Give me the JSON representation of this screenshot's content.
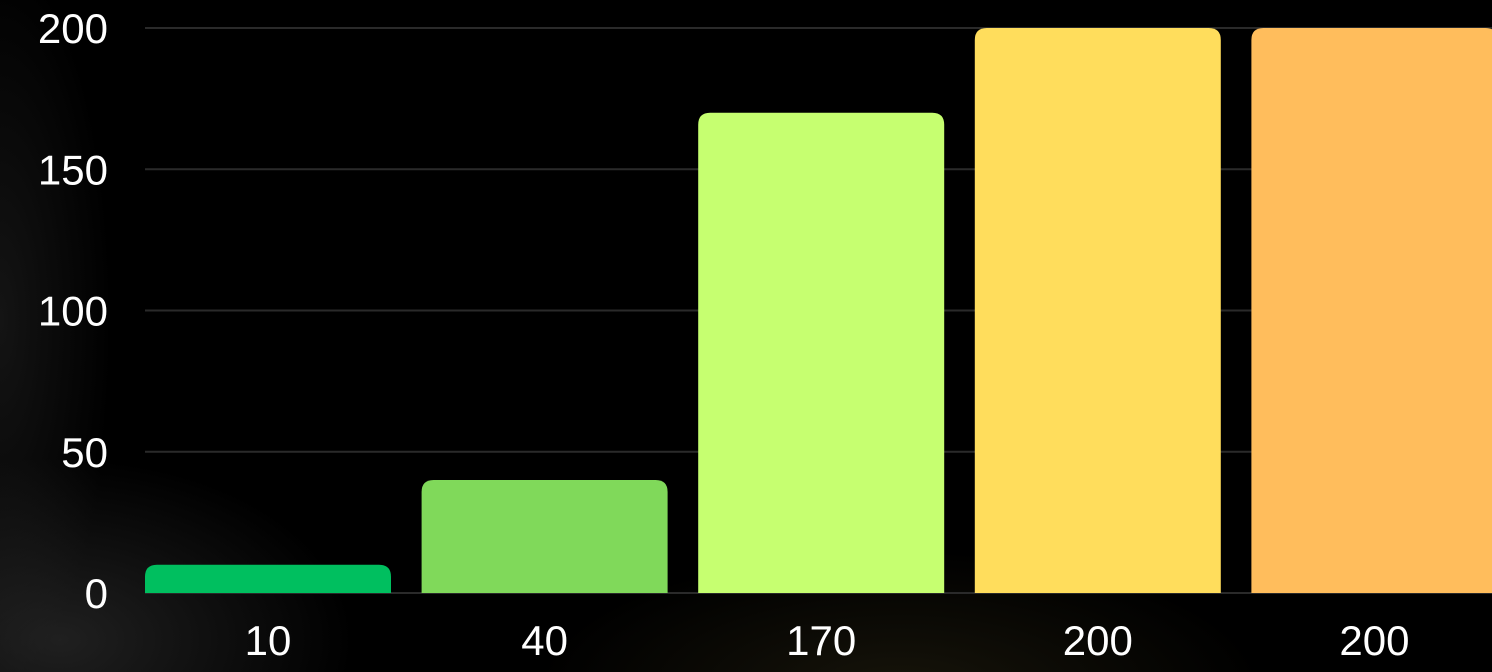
{
  "chart_data": {
    "type": "bar",
    "categories": [
      "10",
      "40",
      "170",
      "200",
      "200"
    ],
    "values": [
      10,
      40,
      170,
      200,
      200
    ],
    "colors": [
      "#00bf5f",
      "#80d95a",
      "#c6ff70",
      "#ffdd5c",
      "#ffbd5c"
    ],
    "yticks": [
      "0",
      "50",
      "100",
      "150",
      "200"
    ],
    "ylim": [
      0,
      200
    ],
    "grid": true,
    "title": "",
    "xlabel": "",
    "ylabel": ""
  }
}
